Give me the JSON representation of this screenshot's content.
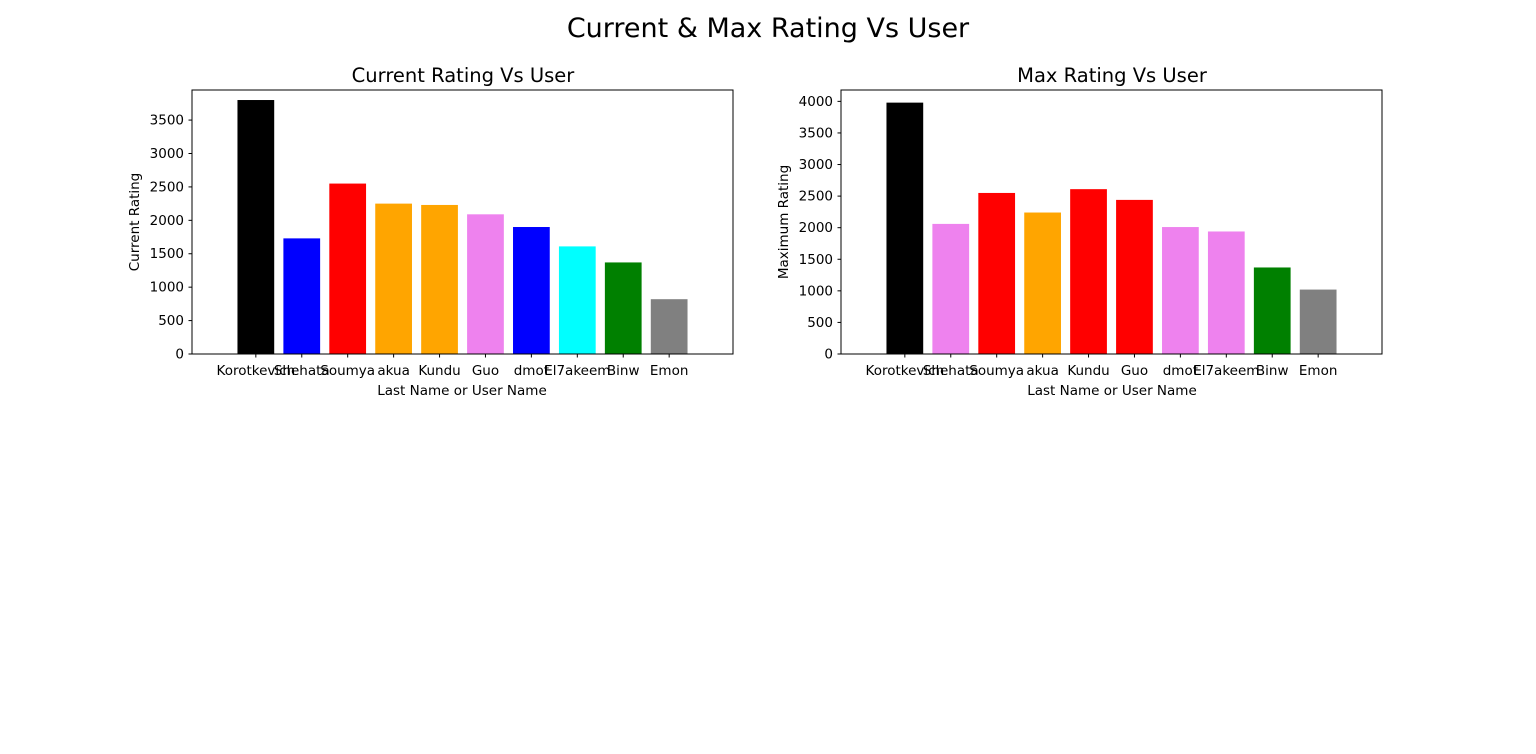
{
  "figure": {
    "suptitle": "Current & Max Rating Vs User"
  },
  "chart_data": [
    {
      "type": "bar",
      "title": "Current Rating Vs User",
      "xlabel": "Last Name or User Name",
      "ylabel": "Current Rating",
      "categories": [
        "Korotkevich",
        "Shehata",
        "Soumya",
        "akua",
        "Kundu",
        "Guo",
        "dmot",
        "El7akeem",
        "Binw",
        "Emon"
      ],
      "values": [
        3800,
        1730,
        2550,
        2250,
        2230,
        2090,
        1900,
        1610,
        1370,
        820
      ],
      "colors": [
        "#000000",
        "#0000ff",
        "#ff0000",
        "#ffa500",
        "#ffa500",
        "#ee82ee",
        "#0000ff",
        "#00ffff",
        "#008000",
        "#808080"
      ],
      "ylim": [
        0,
        3950
      ],
      "yticks": [
        0,
        500,
        1000,
        1500,
        2000,
        2500,
        3000,
        3500
      ],
      "grid": false,
      "legend": false
    },
    {
      "type": "bar",
      "title": "Max Rating Vs User",
      "xlabel": "Last Name or User Name",
      "ylabel": "Maximum Rating",
      "categories": [
        "Korotkevich",
        "Shehata",
        "Soumya",
        "akua",
        "Kundu",
        "Guo",
        "dmot",
        "El7akeem",
        "Binw",
        "Emon"
      ],
      "values": [
        3980,
        2060,
        2550,
        2240,
        2610,
        2440,
        2010,
        1940,
        1370,
        1020
      ],
      "colors": [
        "#000000",
        "#ee82ee",
        "#ff0000",
        "#ffa500",
        "#ff0000",
        "#ff0000",
        "#ee82ee",
        "#ee82ee",
        "#008000",
        "#808080"
      ],
      "ylim": [
        0,
        4180
      ],
      "yticks": [
        0,
        500,
        1000,
        1500,
        2000,
        2500,
        3000,
        3500,
        4000
      ],
      "grid": false,
      "legend": false
    }
  ]
}
